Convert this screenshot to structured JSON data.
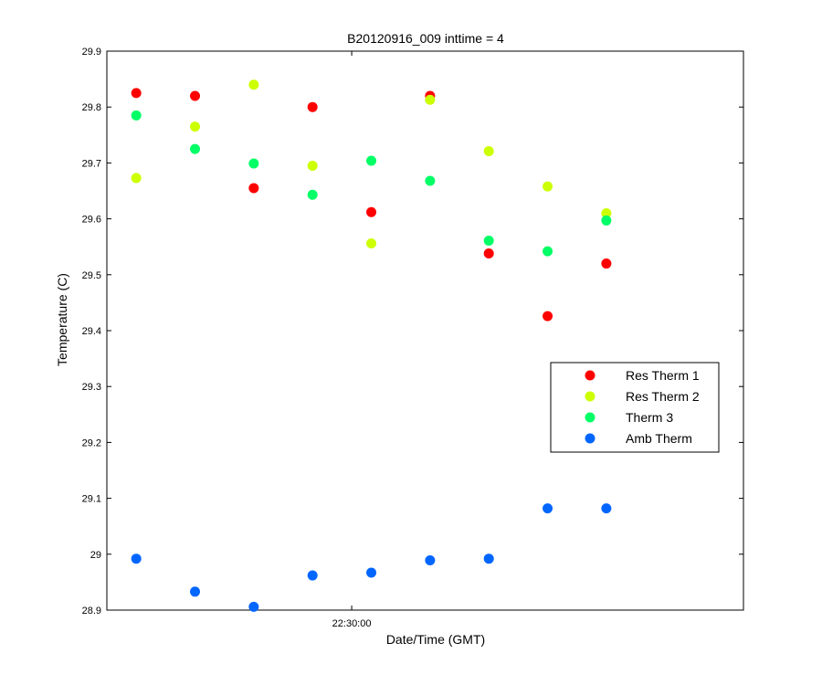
{
  "chart_data": {
    "type": "scatter",
    "title": "B20120916_009 inttime = 4",
    "xlabel": "Date/Time (GMT)",
    "ylabel": "Temperature (C)",
    "ylim": [
      28.9,
      29.9
    ],
    "yticks": [
      28.9,
      29,
      29.1,
      29.2,
      29.3,
      29.4,
      29.5,
      29.6,
      29.7,
      29.8,
      29.9
    ],
    "ytick_labels": [
      "28.9",
      "29",
      "29.1",
      "29.2",
      "29.3",
      "29.4",
      "29.5",
      "29.6",
      "29.7",
      "29.8",
      "29.9"
    ],
    "xlim": [
      "22:29:35",
      "22:30:40"
    ],
    "xticks": [
      "22:30:00"
    ],
    "xtick_labels": [
      "22:30:00"
    ],
    "x": [
      "22:29:38",
      "22:29:44",
      "22:29:50",
      "22:29:56",
      "22:30:02",
      "22:30:08",
      "22:30:14",
      "22:30:20",
      "22:30:26"
    ],
    "grid": false,
    "legend_position": "right",
    "series": [
      {
        "name": "Res Therm 1",
        "color": "#ff0000",
        "values": [
          29.825,
          29.82,
          29.655,
          29.8,
          29.612,
          29.82,
          29.538,
          29.426,
          29.52
        ]
      },
      {
        "name": "Res Therm 2",
        "color": "#ccff00",
        "values": [
          29.673,
          29.765,
          29.84,
          29.695,
          29.556,
          29.813,
          29.721,
          29.658,
          29.61
        ]
      },
      {
        "name": "Therm 3",
        "color": "#00ff66",
        "values": [
          29.785,
          29.725,
          29.699,
          29.643,
          29.704,
          29.668,
          29.561,
          29.542,
          29.597
        ]
      },
      {
        "name": "Amb Therm",
        "color": "#0066ff",
        "values": [
          28.992,
          28.933,
          28.906,
          28.962,
          28.967,
          28.989,
          28.992,
          29.082,
          29.082
        ]
      }
    ]
  }
}
